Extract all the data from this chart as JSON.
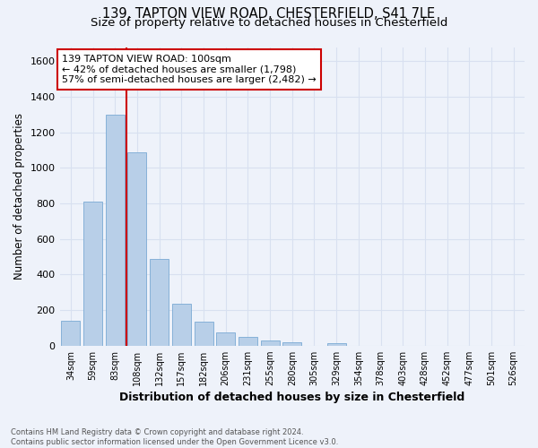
{
  "title1": "139, TAPTON VIEW ROAD, CHESTERFIELD, S41 7LE",
  "title2": "Size of property relative to detached houses in Chesterfield",
  "xlabel": "Distribution of detached houses by size in Chesterfield",
  "ylabel": "Number of detached properties",
  "footnote": "Contains HM Land Registry data © Crown copyright and database right 2024.\nContains public sector information licensed under the Open Government Licence v3.0.",
  "categories": [
    "34sqm",
    "59sqm",
    "83sqm",
    "108sqm",
    "132sqm",
    "157sqm",
    "182sqm",
    "206sqm",
    "231sqm",
    "255sqm",
    "280sqm",
    "305sqm",
    "329sqm",
    "354sqm",
    "378sqm",
    "403sqm",
    "428sqm",
    "452sqm",
    "477sqm",
    "501sqm",
    "526sqm"
  ],
  "values": [
    140,
    810,
    1300,
    1090,
    490,
    235,
    135,
    75,
    48,
    30,
    20,
    0,
    15,
    0,
    0,
    0,
    0,
    0,
    0,
    0,
    0
  ],
  "bar_color": "#b8cfe8",
  "bar_edge_color": "#7aaad4",
  "vline_x_index": 2,
  "vline_color": "#cc0000",
  "annotation_text": "139 TAPTON VIEW ROAD: 100sqm\n← 42% of detached houses are smaller (1,798)\n57% of semi-detached houses are larger (2,482) →",
  "annotation_box_color": "#cc0000",
  "ylim": [
    0,
    1680
  ],
  "yticks": [
    0,
    200,
    400,
    600,
    800,
    1000,
    1200,
    1400,
    1600
  ],
  "bg_color": "#eef2fa",
  "grid_color": "#d8e0f0",
  "title_fontsize": 10.5,
  "subtitle_fontsize": 9.5
}
